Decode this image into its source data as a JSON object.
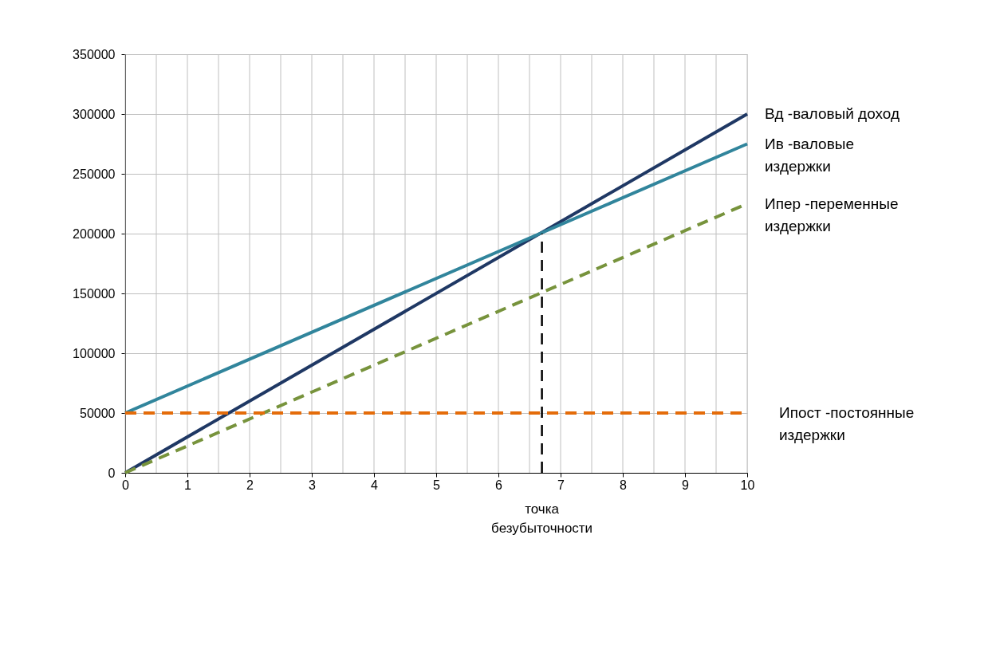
{
  "chart_data": {
    "type": "line",
    "x": [
      0,
      10
    ],
    "series": [
      {
        "name": "Вд -валовый доход",
        "color": "#1f3864",
        "values": [
          0,
          300000
        ],
        "line_style": "solid"
      },
      {
        "name": "Ив -валовые издержки",
        "color": "#31859c",
        "values": [
          50000,
          275000
        ],
        "line_style": "solid"
      },
      {
        "name": "Ипер -переменные издержки",
        "color": "#77933c",
        "values": [
          0,
          225000
        ],
        "line_style": "dashed"
      },
      {
        "name": "Ипост -постоянные издержки",
        "color": "#e46c0a",
        "values": [
          50000,
          50000
        ],
        "line_style": "dashed"
      },
      {
        "color": "#000000",
        "x": [
          6.7,
          6.7
        ],
        "values": [
          0,
          200000
        ],
        "line_style": "dashed"
      }
    ],
    "annotations": [
      {
        "text": "точка безубыточности",
        "x": 6.7,
        "y": 0
      }
    ],
    "xlim": [
      0,
      10
    ],
    "xticks": [
      0,
      {
        "value": 0.5,
        "label": null
      },
      1,
      {
        "value": 1.5,
        "label": null
      },
      2,
      {
        "value": 2.5,
        "label": null
      },
      3,
      {
        "value": 3.5,
        "label": null
      },
      4,
      {
        "value": 4.5,
        "label": null
      },
      5,
      {
        "value": 5.5,
        "label": null
      },
      6,
      {
        "value": 6.5,
        "label": null
      },
      7,
      {
        "value": 7.5,
        "label": null
      },
      8,
      {
        "value": 8.5,
        "label": null
      },
      9,
      {
        "value": 9.5,
        "label": null
      },
      10
    ],
    "ylim": [
      0,
      350000
    ],
    "yticks": [
      0,
      50000,
      100000,
      150000,
      200000,
      250000,
      300000,
      350000
    ],
    "grid": true,
    "marker": "none"
  }
}
